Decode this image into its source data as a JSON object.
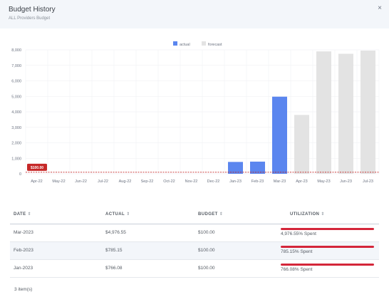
{
  "header": {
    "title": "Budget History",
    "subtitle": "ALL Providers Budget",
    "close_label": "×"
  },
  "chart_data": {
    "type": "bar",
    "legend": [
      {
        "name": "actual",
        "color": "#5b86ef"
      },
      {
        "name": "forecast",
        "color": "#e3e3e3"
      }
    ],
    "legend_placement": "top-center",
    "categories": [
      "Apr-22",
      "May-22",
      "Jun-22",
      "Jul-22",
      "Aug-22",
      "Sep-22",
      "Oct-22",
      "Nov-22",
      "Dec-22",
      "Jan-23",
      "Feb-23",
      "Mar-23",
      "Apr-23",
      "May-23",
      "Jun-23",
      "Jul-23"
    ],
    "series": [
      {
        "name": "actual",
        "color": "#5b86ef",
        "values": [
          0,
          0,
          0,
          0,
          0,
          0,
          0,
          0,
          0,
          766.08,
          785.15,
          4976.55,
          null,
          null,
          null,
          null
        ]
      },
      {
        "name": "forecast",
        "color": "#e3e3e3",
        "values": [
          null,
          null,
          null,
          null,
          null,
          null,
          null,
          null,
          null,
          null,
          null,
          null,
          3800,
          7900,
          7750,
          7950
        ]
      }
    ],
    "yticks": [
      "8,000",
      "7,000",
      "6,000",
      "5,000",
      "4,000",
      "3,000",
      "2,000",
      "1,000",
      "0"
    ],
    "ylim": [
      0,
      8000
    ],
    "budget_line": {
      "value": 100,
      "label": "$100.00",
      "color": "#c62828"
    },
    "grid": true
  },
  "table": {
    "columns": [
      "DATE",
      "ACTUAL",
      "BUDGET",
      "UTILIZATION"
    ],
    "sort_glyph": "⇕",
    "rows": [
      {
        "date": "Mar-2023",
        "actual": "$4,976.55",
        "budget": "$100.00",
        "utilization": "4,976.55% Spent"
      },
      {
        "date": "Feb-2023",
        "actual": "$785.15",
        "budget": "$100.00",
        "utilization": "785.15% Spent"
      },
      {
        "date": "Jan-2023",
        "actual": "$766.08",
        "budget": "$100.00",
        "utilization": "766.08% Spent"
      }
    ]
  },
  "footer": {
    "count_label": "3 item(s)"
  }
}
